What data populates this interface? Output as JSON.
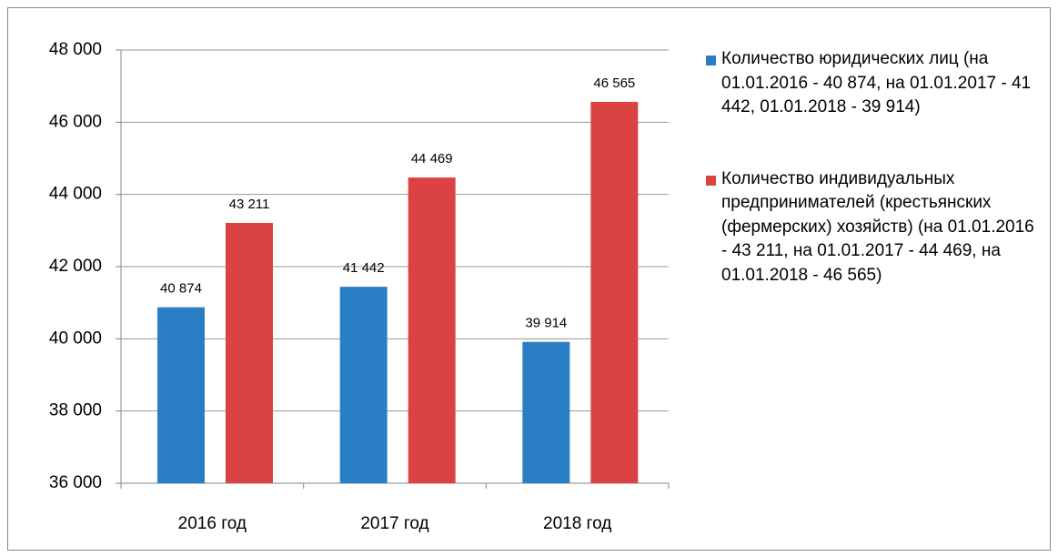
{
  "chart_data": {
    "type": "bar",
    "categories": [
      "2016 год",
      "2017 год",
      "2018 год"
    ],
    "series": [
      {
        "name": "Количество юридических лиц (на 01.01.2016 - 40 874, на 01.01.2017 - 41 442, 01.01.2018 - 39 914)",
        "color": "#2a7fc4",
        "values": [
          40874,
          41442,
          39914
        ],
        "value_labels": [
          "40 874",
          "41 442",
          "39 914"
        ]
      },
      {
        "name": "Количество индивидуальных предпринимателей (крестьянских (фермерских) хозяйств) (на 01.01.2016 - 43 211, на 01.01.2017 - 44 469, на 01.01.2018 - 46 565)",
        "color": "#db4343",
        "values": [
          43211,
          44469,
          46565
        ],
        "value_labels": [
          "43 211",
          "44 469",
          "46 565"
        ]
      }
    ],
    "ylim": [
      36000,
      48000
    ],
    "yticks": [
      {
        "value": 36000,
        "label": "36 000"
      },
      {
        "value": 38000,
        "label": "38 000"
      },
      {
        "value": 40000,
        "label": "40 000"
      },
      {
        "value": 42000,
        "label": "42 000"
      },
      {
        "value": 44000,
        "label": "44 000"
      },
      {
        "value": 46000,
        "label": "46 000"
      },
      {
        "value": 48000,
        "label": "48 000"
      }
    ],
    "grid": true,
    "legend": "right"
  }
}
